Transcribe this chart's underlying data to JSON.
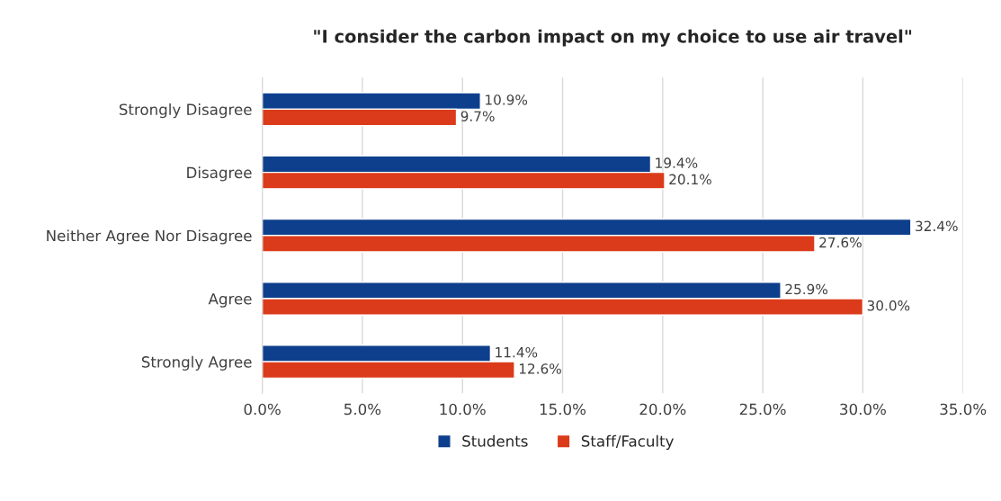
{
  "chart_data": {
    "type": "bar",
    "orientation": "horizontal",
    "title": "\"I consider the carbon impact on my choice to use air travel\"",
    "categories": [
      "Strongly Disagree",
      "Disagree",
      "Neither Agree Nor Disagree",
      "Agree",
      "Strongly Agree"
    ],
    "series": [
      {
        "name": "Students",
        "color": "#0e3f8c",
        "values": [
          10.9,
          19.4,
          32.4,
          25.9,
          11.4
        ],
        "value_labels": [
          "10.9%",
          "19.4%",
          "32.4%",
          "25.9%",
          "11.4%"
        ]
      },
      {
        "name": "Staff/Faculty",
        "color": "#db3b1b",
        "values": [
          9.7,
          20.1,
          27.6,
          30.0,
          12.6
        ],
        "value_labels": [
          "9.7%",
          "20.1%",
          "27.6%",
          "30.0%",
          "12.6%"
        ]
      }
    ],
    "xlim": [
      0,
      35
    ],
    "xticks": [
      {
        "value": 0,
        "label": "0.0%"
      },
      {
        "value": 5,
        "label": "5.0%"
      },
      {
        "value": 10,
        "label": "10.0%"
      },
      {
        "value": 15,
        "label": "15.0%"
      },
      {
        "value": 20,
        "label": "20.0%"
      },
      {
        "value": 25,
        "label": "25.0%"
      },
      {
        "value": 30,
        "label": "30.0%"
      },
      {
        "value": 35,
        "label": "35.0%"
      }
    ],
    "grid": "x",
    "legend": "bottom"
  }
}
